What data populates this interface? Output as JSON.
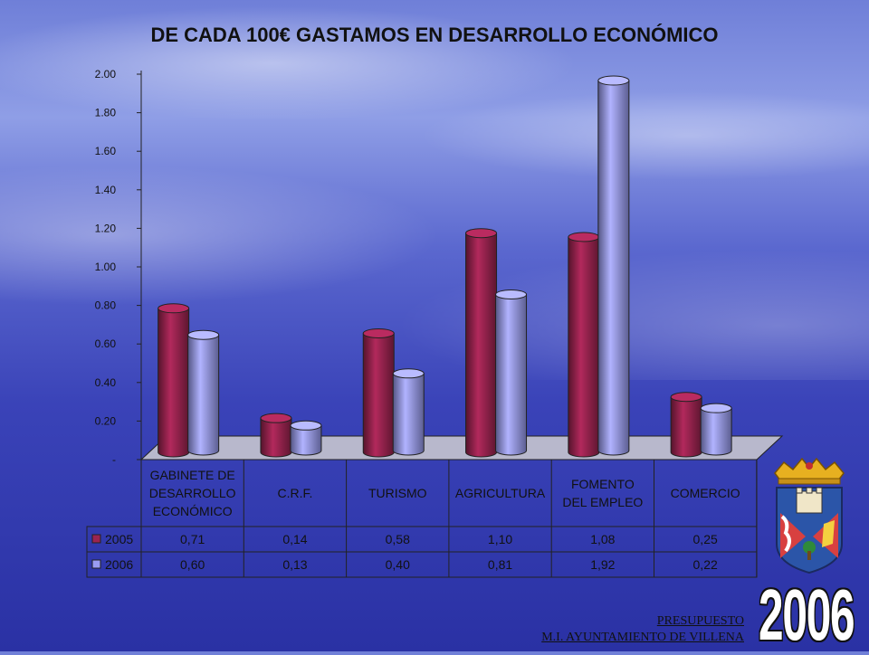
{
  "slide": {
    "footer_line1": "PRESUPUESTO",
    "footer_line2": "M.I. AYUNTAMIENTO DE VILLENA",
    "year_badge": "2006"
  },
  "chart_data": {
    "type": "bar",
    "title": "DE CADA 100€ GASTAMOS EN DESARROLLO ECONÓMICO",
    "categories": [
      [
        "GABINETE DE",
        "DESARROLLO",
        "ECONÓMICO"
      ],
      [
        "C.R.F."
      ],
      [
        "TURISMO"
      ],
      [
        "AGRICULTURA"
      ],
      [
        "FOMENTO",
        "DEL EMPLEO"
      ],
      [
        "COMERCIO"
      ]
    ],
    "series": [
      {
        "name": "2005",
        "color": "#9b2450",
        "values": [
          0.71,
          0.14,
          0.58,
          1.1,
          1.08,
          0.25
        ],
        "labels": [
          "0,71",
          "0,14",
          "0,58",
          "1,10",
          "1,08",
          "0,25"
        ]
      },
      {
        "name": "2006",
        "color": "#9a9cf2",
        "values": [
          0.6,
          0.13,
          0.4,
          0.81,
          1.92,
          0.22
        ],
        "labels": [
          "0,60",
          "0,13",
          "0,40",
          "0,81",
          "1,92",
          "0,22"
        ]
      }
    ],
    "ylim": [
      0,
      2.0
    ],
    "yticks": [
      {
        "v": 0,
        "label": "-"
      },
      {
        "v": 0.2,
        "label": "0.20"
      },
      {
        "v": 0.4,
        "label": "0.40"
      },
      {
        "v": 0.6,
        "label": "0.60"
      },
      {
        "v": 0.8,
        "label": "0.80"
      },
      {
        "v": 1.0,
        "label": "1.00"
      },
      {
        "v": 1.2,
        "label": "1.20"
      },
      {
        "v": 1.4,
        "label": "1.40"
      },
      {
        "v": 1.6,
        "label": "1.60"
      },
      {
        "v": 1.8,
        "label": "1.80"
      },
      {
        "v": 2.0,
        "label": "2.00"
      }
    ],
    "legend": "data-table",
    "grid": false
  }
}
